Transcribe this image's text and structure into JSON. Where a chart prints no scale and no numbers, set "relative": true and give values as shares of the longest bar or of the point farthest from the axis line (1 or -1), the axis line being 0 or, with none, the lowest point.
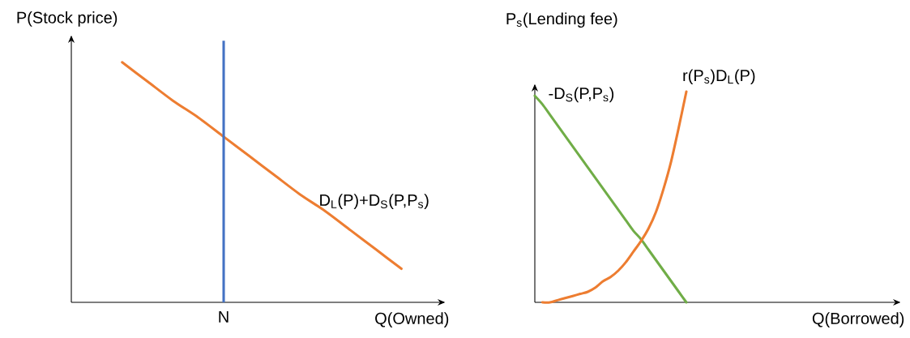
{
  "chart_data": [
    {
      "type": "line",
      "relative": true,
      "xlabel": "Q(Owned)",
      "ylabel": "P(Stock price)",
      "categories": [
        null,
        null,
        null,
        null,
        null,
        null,
        null,
        null,
        null,
        null,
        null,
        null,
        null,
        null,
        null
      ],
      "series": [
        {
          "name": "D$_{L}$(P)+D$_{S}$(P,P$_{s}$)",
          "color": "#ed7d31",
          "values": [
            null,
            null,
            1,
            0.92,
            0.84,
            0.77,
            0.69,
            0.61,
            0.53,
            0.45,
            0.38,
            0.3,
            0.22,
            0.14,
            null
          ]
        }
      ],
      "ref_lines": [
        {
          "axis": "x",
          "value": "N",
          "color": "#4472c4"
        }
      ]
    },
    {
      "type": "line",
      "relative": true,
      "xlabel": "Q(Borrowed)",
      "ylabel": "P$_{s}$(Lending fee)",
      "categories": [
        null,
        null,
        null,
        null,
        null,
        null,
        null,
        null,
        null,
        null,
        null,
        null,
        null,
        null,
        null,
        null,
        null,
        null,
        null,
        null,
        null,
        null,
        null,
        null,
        null,
        null,
        null,
        null,
        null,
        null,
        null,
        null,
        null,
        null,
        null,
        null,
        null,
        null,
        null,
        null,
        null,
        null,
        null,
        null,
        null,
        null,
        null,
        null,
        null
      ],
      "series": [
        {
          "name": "-D$_{S}$(P,P$_{s}$)",
          "color": "#70ad47",
          "values": [
            0.98,
            0.94,
            0.89,
            0.84,
            0.79,
            0.74,
            0.69,
            0.64,
            0.59,
            0.54,
            0.49,
            0.44,
            0.39,
            0.34,
            0.3,
            0.25,
            0.2,
            0.15,
            0.1,
            0.05,
            0,
            null,
            null,
            null,
            null,
            null,
            null,
            null,
            null,
            null,
            null,
            null,
            null,
            null,
            null,
            null,
            null,
            null,
            null,
            null,
            null,
            null,
            null,
            null,
            null,
            null,
            null,
            null,
            null
          ]
        },
        {
          "name": "r(P$_{s}$)D$_{L}$(P)",
          "color": "#ed7d31",
          "values": [
            null,
            0,
            0,
            0.01,
            0.02,
            0.03,
            0.04,
            0.05,
            0.07,
            0.1,
            0.12,
            0.15,
            0.19,
            0.24,
            0.29,
            0.35,
            0.43,
            0.54,
            0.67,
            0.83,
            1,
            null,
            null,
            null,
            null,
            null,
            null,
            null,
            null,
            null,
            null,
            null,
            null,
            null,
            null,
            null,
            null,
            null,
            null,
            null,
            null,
            null,
            null,
            null,
            null,
            null,
            null,
            null,
            null
          ]
        }
      ]
    }
  ]
}
